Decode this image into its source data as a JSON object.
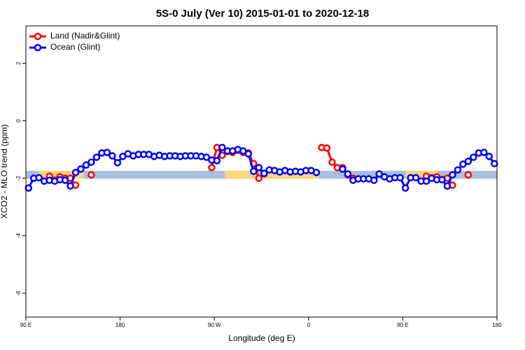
{
  "chart_data": {
    "type": "line",
    "title": "5S-0 July (Ver 10)   2015-01-01 to 2020-12-18",
    "xlabel": "Longitude (deg E)",
    "ylabel": "XCO2 - MLO trend (ppm)",
    "xlim": [
      90,
      540
    ],
    "ylim": [
      -6.83,
      3.3
    ],
    "xticks": [
      {
        "value": 90,
        "label": "90 E"
      },
      {
        "value": 180,
        "label": "180"
      },
      {
        "value": 270,
        "label": "90 W"
      },
      {
        "value": 360,
        "label": "0"
      },
      {
        "value": 450,
        "label": "90 E"
      },
      {
        "value": 540,
        "label": "180"
      }
    ],
    "yticks": [
      -6,
      -4,
      -2,
      0,
      2
    ],
    "legend": "topleft",
    "band_ylim": [
      -2.02,
      -1.74
    ],
    "bands": [
      {
        "from": 90,
        "to": 102,
        "color": "#a9bfdc"
      },
      {
        "from": 102,
        "to": 145,
        "color": "#f9d67a"
      },
      {
        "from": 145,
        "to": 280,
        "color": "#a9bfdc"
      },
      {
        "from": 280,
        "to": 370,
        "color": "#f9d67a"
      },
      {
        "from": 370,
        "to": 453,
        "color": "#a9bfdc"
      },
      {
        "from": 453,
        "to": 483,
        "color": "#f9d67a"
      },
      {
        "from": 483,
        "to": 540,
        "color": "#a9bfdc"
      }
    ],
    "x": [
      92.5,
      97.5,
      102.5,
      107.5,
      112.5,
      117.5,
      122.5,
      127.5,
      132.5,
      137.5,
      142.5,
      147.5,
      152.5,
      157.5,
      162.5,
      167.5,
      172.5,
      177.5,
      182.5,
      187.5,
      192.5,
      197.5,
      202.5,
      207.5,
      212.5,
      217.5,
      222.5,
      227.5,
      232.5,
      237.5,
      242.5,
      247.5,
      252.5,
      257.5,
      262.5,
      267.5,
      272.5,
      277.5,
      282.5,
      287.5,
      292.5,
      297.5,
      302.5,
      307.5,
      312.5,
      317.5,
      322.5,
      327.5,
      332.5,
      337.5,
      342.5,
      347.5,
      352.5,
      357.5,
      362.5,
      367.5,
      372.5,
      377.5,
      382.5,
      387.5,
      392.5,
      397.5,
      402.5,
      407.5,
      412.5,
      417.5,
      422.5,
      427.5,
      432.5,
      437.5,
      442.5,
      447.5,
      452.5,
      457.5,
      462.5,
      467.5,
      472.5,
      477.5,
      482.5,
      487.5,
      492.5,
      497.5,
      502.5,
      507.5,
      512.5,
      517.5,
      522.5,
      527.5,
      532.5,
      537.5
    ],
    "series": [
      {
        "name": "Land (Nadir&Glint)",
        "color": "#ff0000",
        "values": [
          null,
          null,
          null,
          null,
          -1.93,
          -2.07,
          -1.95,
          -2.0,
          -2.0,
          -2.24,
          null,
          null,
          -1.88,
          null,
          null,
          null,
          null,
          null,
          null,
          null,
          null,
          null,
          null,
          null,
          null,
          null,
          null,
          null,
          null,
          null,
          null,
          null,
          null,
          null,
          null,
          -1.63,
          -0.93,
          -1.2,
          -1.07,
          -1.1,
          -1.02,
          -1.1,
          -1.12,
          -1.49,
          -2.0,
          -1.85,
          null,
          null,
          null,
          null,
          null,
          null,
          null,
          null,
          null,
          null,
          -0.93,
          -0.95,
          -1.44,
          -1.63,
          -1.63,
          -1.88,
          -2.0,
          null,
          null,
          null,
          null,
          null,
          null,
          null,
          null,
          null,
          null,
          null,
          null,
          null,
          -1.93,
          -1.98,
          -1.95,
          -2.05,
          -2.0,
          -2.24,
          null,
          null,
          -1.88,
          null,
          null,
          null,
          null,
          null
        ]
      },
      {
        "name": "Ocean (Glint)",
        "color": "#0000ff",
        "values": [
          -2.34,
          -2.0,
          -1.98,
          -2.1,
          -2.07,
          -2.1,
          -2.05,
          -2.07,
          -2.27,
          -1.8,
          -1.68,
          -1.54,
          -1.44,
          -1.27,
          -1.12,
          -1.1,
          -1.22,
          -1.46,
          -1.24,
          -1.15,
          -1.22,
          -1.17,
          -1.17,
          -1.17,
          -1.24,
          -1.2,
          -1.24,
          -1.22,
          -1.22,
          -1.24,
          -1.22,
          -1.22,
          -1.22,
          -1.24,
          -1.27,
          -1.37,
          -1.39,
          -0.93,
          -1.05,
          -1.05,
          -1.0,
          -1.05,
          -1.15,
          -1.76,
          -1.63,
          -1.83,
          -1.71,
          -1.73,
          -1.78,
          -1.73,
          -1.78,
          -1.76,
          -1.78,
          -1.73,
          -1.73,
          -1.8,
          null,
          null,
          null,
          null,
          -1.68,
          -1.85,
          -2.07,
          -2.02,
          -2.02,
          -2.02,
          -2.07,
          -1.85,
          -1.95,
          -2.02,
          -1.98,
          -1.98,
          -2.34,
          -1.98,
          -1.98,
          -2.1,
          -2.1,
          -2.0,
          -2.05,
          -2.05,
          -2.27,
          -1.88,
          -1.71,
          -1.51,
          -1.41,
          -1.27,
          -1.12,
          -1.1,
          -1.24,
          -1.49
        ]
      }
    ]
  }
}
